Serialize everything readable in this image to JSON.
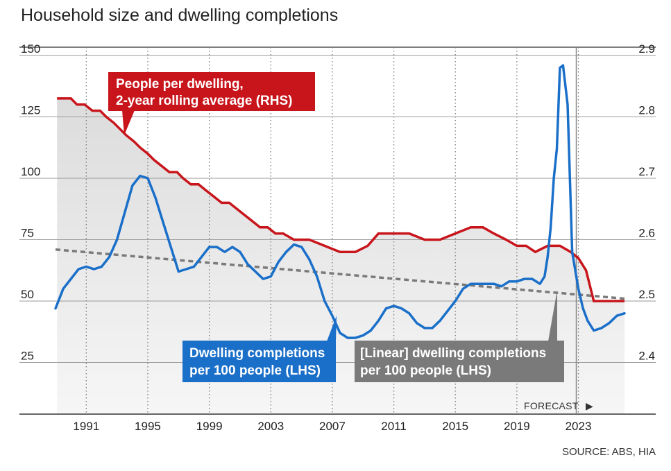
{
  "title": "Household size and dwelling completions",
  "source": "SOURCE: ABS, HIA",
  "forecast_label": "FORECAST",
  "forecast_arrow": "▶",
  "colors": {
    "household": "#c8151b",
    "completions": "#1a6fc9",
    "linear": "#7a7a7a",
    "shade": "#e8e8e8",
    "grid": "#9a9a9a"
  },
  "callouts": {
    "household": [
      "People per dwelling,",
      "2-year rolling average (RHS)"
    ],
    "completions": [
      "Dwelling completions",
      "per 100 people (LHS)"
    ],
    "linear": [
      "[Linear] dwelling completions",
      "per 100 people (LHS)"
    ]
  },
  "chart_data": {
    "type": "line",
    "title": "Household size and dwelling completions",
    "x_ticks": [
      "1991",
      "1995",
      "1999",
      "2003",
      "2007",
      "2011",
      "2015",
      "2019",
      "2023"
    ],
    "xlim": [
      1989,
      2026.5
    ],
    "forecast_from": 2023,
    "y_left": {
      "ticks": [
        25,
        50,
        75,
        100,
        125,
        150
      ],
      "range": [
        0,
        150
      ]
    },
    "y_right": {
      "ticks": [
        2.4,
        2.5,
        2.6,
        2.7,
        2.8,
        2.9
      ],
      "range": [
        2.3,
        2.9
      ]
    },
    "grid": true,
    "series": [
      {
        "name": "People per dwelling, 2-year rolling average (RHS)",
        "axis": "right",
        "x": [
          1989.1,
          1989.5,
          1990,
          1990.4,
          1990.9,
          1991.4,
          1991.9,
          1992.3,
          1992.8,
          1993.2,
          1993.6,
          1994.1,
          1994.5,
          1995,
          1995.4,
          1995.9,
          1996.4,
          1996.9,
          1997.3,
          1997.8,
          1998.3,
          1998.8,
          1999.3,
          1999.8,
          2000.3,
          2000.8,
          2001.3,
          2001.8,
          2002.3,
          2002.8,
          2003.3,
          2003.8,
          2004.5,
          2005.5,
          2006.5,
          2007.5,
          2008.5,
          2009.3,
          2010,
          2011,
          2012,
          2013,
          2014,
          2015,
          2016,
          2016.8,
          2017.5,
          2018.3,
          2019,
          2019.6,
          2020.2,
          2021,
          2021.8,
          2022.5,
          2023,
          2023.5,
          2024,
          2025,
          2026
        ],
        "values": [
          2.83,
          2.83,
          2.83,
          2.82,
          2.82,
          2.81,
          2.81,
          2.8,
          2.79,
          2.78,
          2.77,
          2.76,
          2.75,
          2.74,
          2.73,
          2.72,
          2.71,
          2.71,
          2.7,
          2.69,
          2.69,
          2.68,
          2.67,
          2.66,
          2.66,
          2.65,
          2.64,
          2.63,
          2.62,
          2.62,
          2.61,
          2.61,
          2.6,
          2.6,
          2.59,
          2.58,
          2.58,
          2.59,
          2.61,
          2.61,
          2.61,
          2.6,
          2.6,
          2.61,
          2.62,
          2.62,
          2.61,
          2.6,
          2.59,
          2.59,
          2.58,
          2.59,
          2.59,
          2.58,
          2.57,
          2.55,
          2.5,
          2.5,
          2.5
        ]
      },
      {
        "name": "Dwelling completions per 100 people (LHS)",
        "axis": "left",
        "x": [
          1989,
          1989.5,
          1990,
          1990.5,
          1991,
          1991.5,
          1992,
          1992.5,
          1993,
          1993.5,
          1994,
          1994.5,
          1995,
          1995.5,
          1996,
          1996.5,
          1997,
          1997.5,
          1998,
          1998.5,
          1999,
          1999.5,
          2000,
          2000.5,
          2001,
          2001.5,
          2002,
          2002.5,
          2003,
          2003.5,
          2004,
          2004.5,
          2005,
          2005.5,
          2006,
          2006.5,
          2007,
          2007.5,
          2008,
          2008.5,
          2009,
          2009.5,
          2010,
          2010.5,
          2011,
          2011.5,
          2012,
          2012.5,
          2013,
          2013.5,
          2014,
          2014.5,
          2015,
          2015.5,
          2016,
          2016.5,
          2017,
          2017.5,
          2018,
          2018.5,
          2019,
          2019.5,
          2020,
          2020.5,
          2020.8,
          2021,
          2021.2,
          2021.4,
          2021.6,
          2021.8,
          2022,
          2022.3,
          2022.6,
          2023,
          2023.3,
          2023.6,
          2024,
          2024.5,
          2025,
          2025.5,
          2026
        ],
        "values": [
          47,
          55,
          59,
          63,
          64,
          63,
          64,
          68,
          75,
          86,
          97,
          101,
          100,
          92,
          82,
          72,
          62,
          63,
          64,
          68,
          72,
          72,
          70,
          72,
          70,
          65,
          62,
          59,
          60,
          66,
          70,
          73,
          72,
          67,
          60,
          50,
          44,
          37,
          35,
          35,
          36,
          38,
          42,
          47,
          48,
          47,
          45,
          41,
          39,
          39,
          42,
          46,
          50,
          55,
          57,
          57,
          57,
          57,
          56,
          58,
          58,
          59,
          59,
          57,
          60,
          68,
          80,
          100,
          112,
          145,
          146,
          130,
          70,
          55,
          47,
          42,
          38,
          39,
          41,
          44,
          45
        ]
      },
      {
        "name": "[Linear] dwelling completions per 100 people (LHS)",
        "axis": "left",
        "style": "dashed",
        "x": [
          1989,
          2026
        ],
        "values": [
          71,
          51
        ]
      }
    ]
  }
}
